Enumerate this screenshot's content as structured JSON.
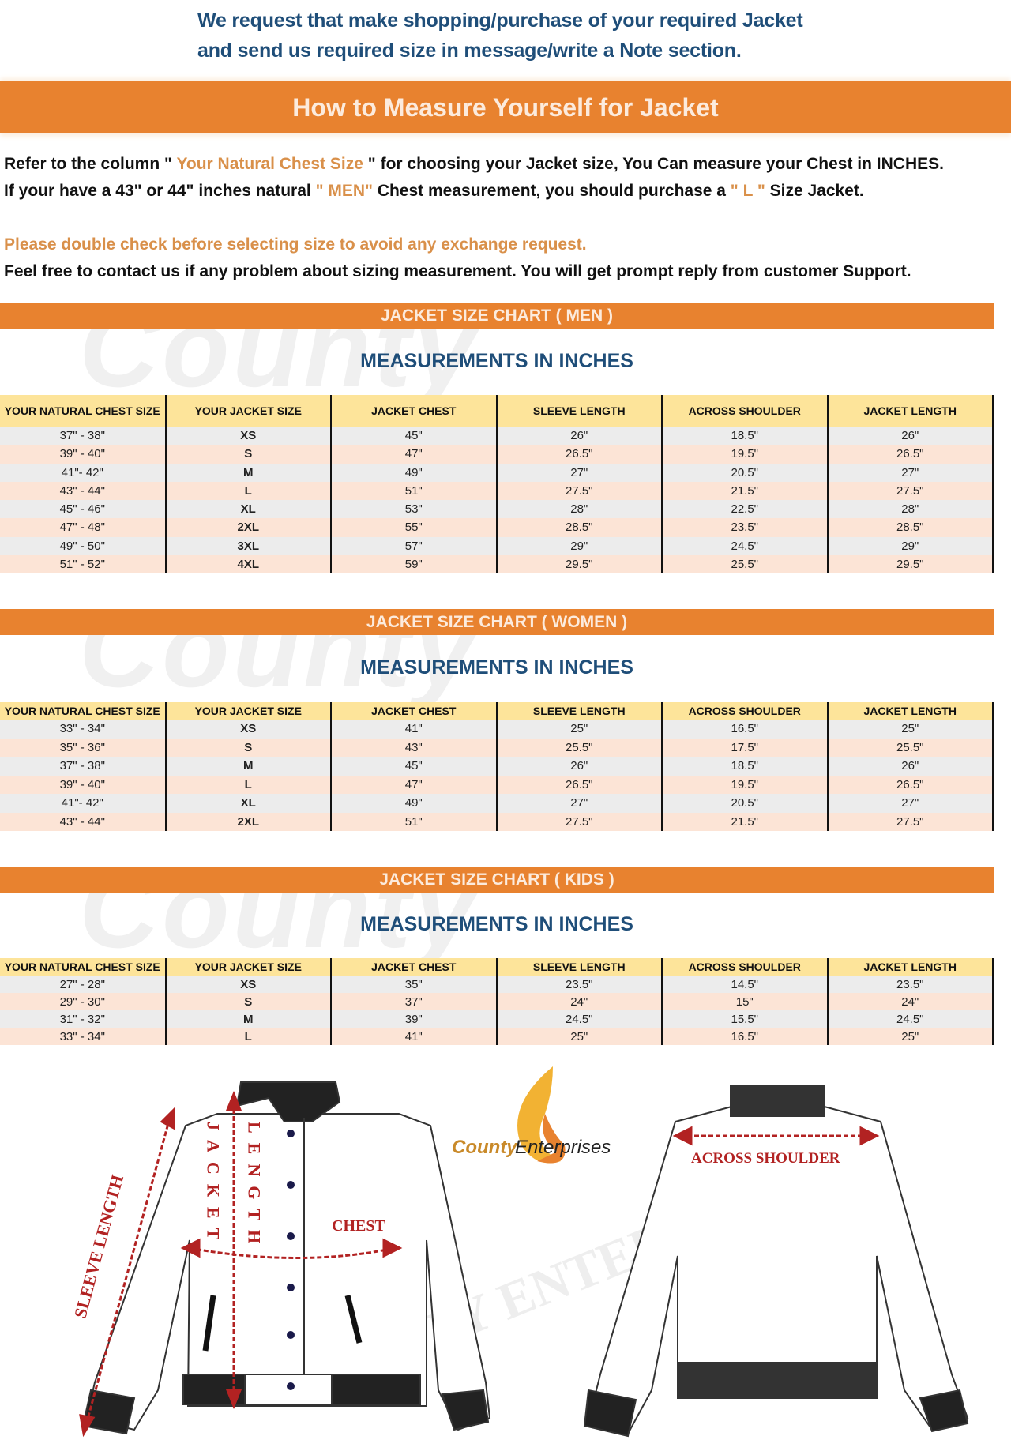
{
  "request": {
    "line1": "We request that make shopping/purchase of your required Jacket",
    "line2": "and send us required size in message/write a Note section."
  },
  "main_banner": "How to Measure Yourself for Jacket",
  "instructions": {
    "line1_a": "Refer to the column \"",
    "line1_hl": " Your Natural Chest Size ",
    "line1_b": "\" for choosing your Jacket size, You Can measure your Chest in INCHES.",
    "line2_a": "If your have a 43\" or 44\"  inches natural ",
    "line2_hl1": "\" MEN\"",
    "line2_b": " Chest measurement, you should purchase a ",
    "line2_hl2": "\" L \"",
    "line2_c": " Size Jacket.",
    "warning": "Please double check before selecting size to avoid any exchange request.",
    "contact": "Feel free to contact us if any problem about sizing measurement. You will get prompt reply from customer Support."
  },
  "colors": {
    "accent_orange": "#E8822F",
    "title_blue": "#1F4E79",
    "highlight": "#D9904A",
    "header_yellow": "#FDE49A",
    "row_grey": "#ECECEC",
    "row_peach": "#FCE4D6",
    "diagram_red": "#B22222"
  },
  "watermark": "County",
  "columns": [
    "YOUR NATURAL CHEST SIZE",
    "YOUR JACKET SIZE",
    "JACKET CHEST",
    "SLEEVE LENGTH",
    "ACROSS SHOULDER",
    "JACKET LENGTH"
  ],
  "measurements_label": "MEASUREMENTS IN INCHES",
  "charts": {
    "men": {
      "title": "JACKET SIZE CHART ( MEN )",
      "rows": [
        [
          "37\" - 38\"",
          "XS",
          "45\"",
          "26\"",
          "18.5\"",
          "26\""
        ],
        [
          "39\" - 40\"",
          "S",
          "47\"",
          "26.5\"",
          "19.5\"",
          "26.5\""
        ],
        [
          "41\"- 42\"",
          "M",
          "49\"",
          "27\"",
          "20.5\"",
          "27\""
        ],
        [
          "43\" - 44\"",
          "L",
          "51\"",
          "27.5\"",
          "21.5\"",
          "27.5\""
        ],
        [
          "45\" - 46\"",
          "XL",
          "53\"",
          "28\"",
          "22.5\"",
          "28\""
        ],
        [
          "47\" - 48\"",
          "2XL",
          "55\"",
          "28.5\"",
          "23.5\"",
          "28.5\""
        ],
        [
          "49\" - 50\"",
          "3XL",
          "57\"",
          "29\"",
          "24.5\"",
          "29\""
        ],
        [
          "51\" - 52\"",
          "4XL",
          "59\"",
          "29.5\"",
          "25.5\"",
          "29.5\""
        ]
      ]
    },
    "women": {
      "title": "JACKET SIZE CHART ( WOMEN )",
      "rows": [
        [
          "33\" - 34\"",
          "XS",
          "41\"",
          "25\"",
          "16.5\"",
          "25\""
        ],
        [
          "35\" - 36\"",
          "S",
          "43\"",
          "25.5\"",
          "17.5\"",
          "25.5\""
        ],
        [
          "37\" - 38\"",
          "M",
          "45\"",
          "26\"",
          "18.5\"",
          "26\""
        ],
        [
          "39\" - 40\"",
          "L",
          "47\"",
          "26.5\"",
          "19.5\"",
          "26.5\""
        ],
        [
          "41\"- 42\"",
          "XL",
          "49\"",
          "27\"",
          "20.5\"",
          "27\""
        ],
        [
          "43\" - 44\"",
          "2XL",
          "51\"",
          "27.5\"",
          "21.5\"",
          "27.5\""
        ]
      ]
    },
    "kids": {
      "title": "JACKET SIZE CHART ( KIDS )",
      "rows": [
        [
          "27\" - 28\"",
          "XS",
          "35\"",
          "23.5\"",
          "14.5\"",
          "23.5\""
        ],
        [
          "29\" - 30\"",
          "S",
          "37\"",
          "24\"",
          "15\"",
          "24\""
        ],
        [
          "31\" - 32\"",
          "M",
          "39\"",
          "24.5\"",
          "15.5\"",
          "24.5\""
        ],
        [
          "33\" - 34\"",
          "L",
          "41\"",
          "25\"",
          "16.5\"",
          "25\""
        ]
      ]
    }
  },
  "diagram": {
    "logo_county": "County",
    "logo_enterprises": "Enterprises",
    "sleeve_length": "SLEEVE LENGTH",
    "jacket": "JACKET",
    "length": "LENGTH",
    "chest": "CHEST",
    "across_shoulder": "ACROSS SHOULDER",
    "watermark": "COUNTY ENTERPRISES"
  }
}
